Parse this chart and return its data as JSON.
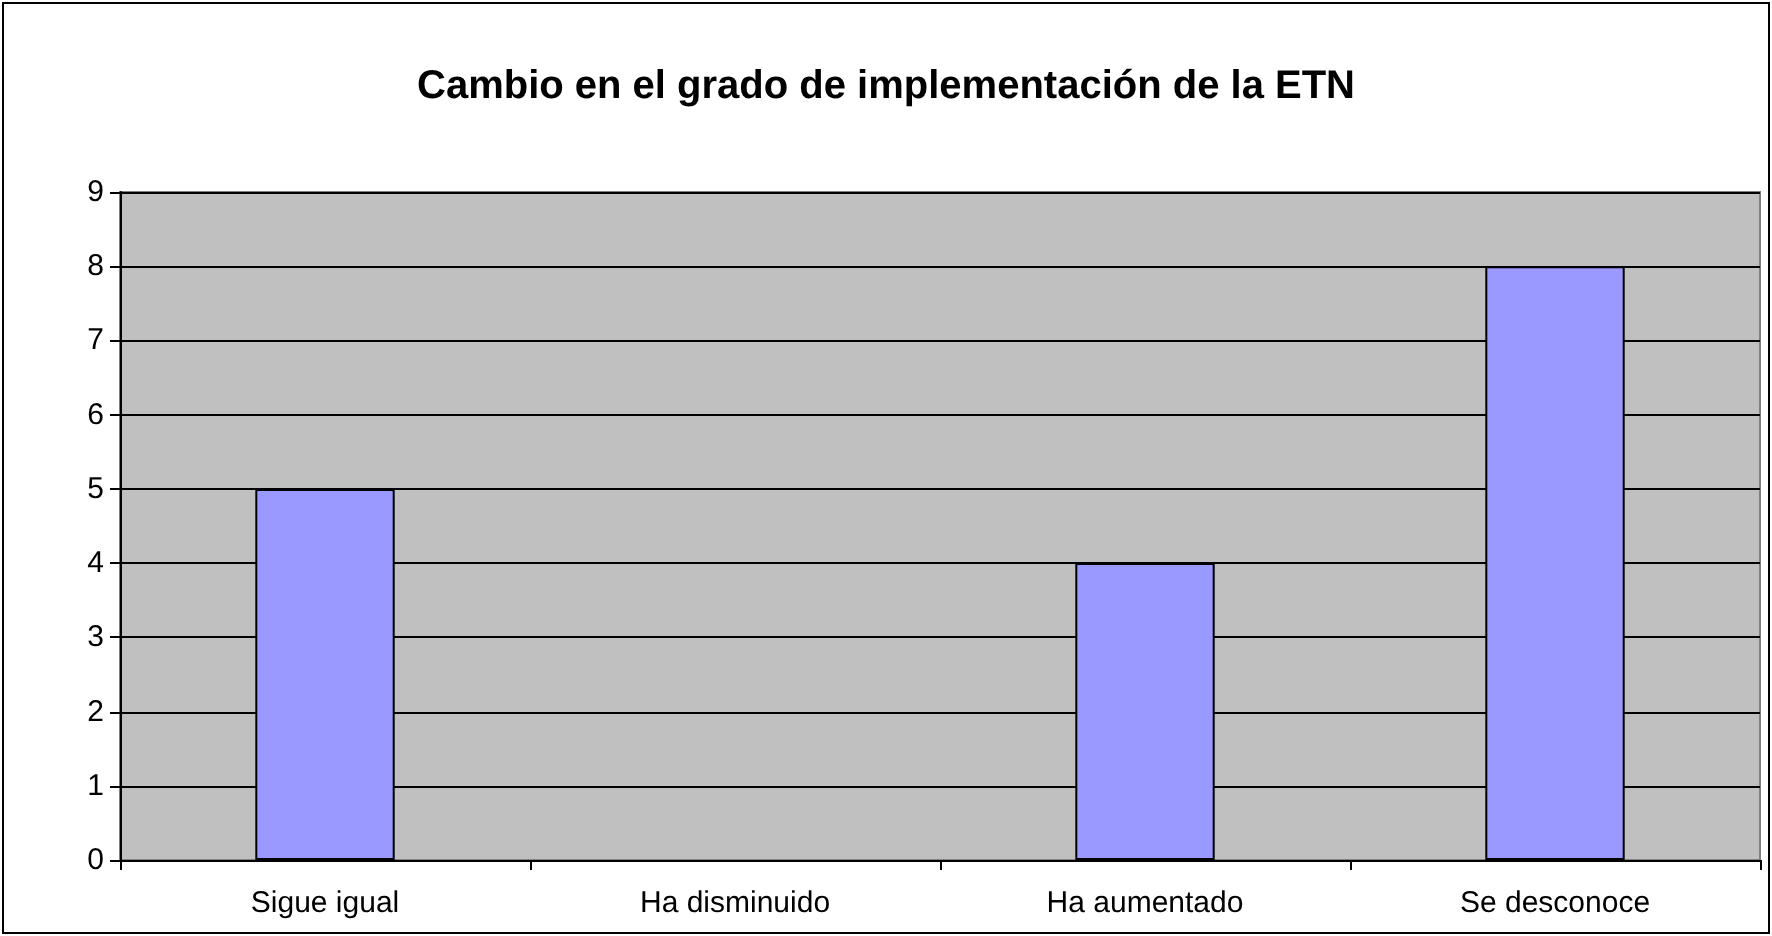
{
  "chart_data": {
    "type": "bar",
    "title": "Cambio en el grado de implementación de la ETN",
    "categories": [
      "Sigue igual",
      "Ha disminuido",
      "Ha aumentado",
      "Se desconoce"
    ],
    "values": [
      5,
      0,
      4,
      8
    ],
    "color": "#9999ff",
    "ylim": [
      0,
      9
    ],
    "yticks": [
      0,
      1,
      2,
      3,
      4,
      5,
      6,
      7,
      8,
      9
    ],
    "grid": true
  }
}
